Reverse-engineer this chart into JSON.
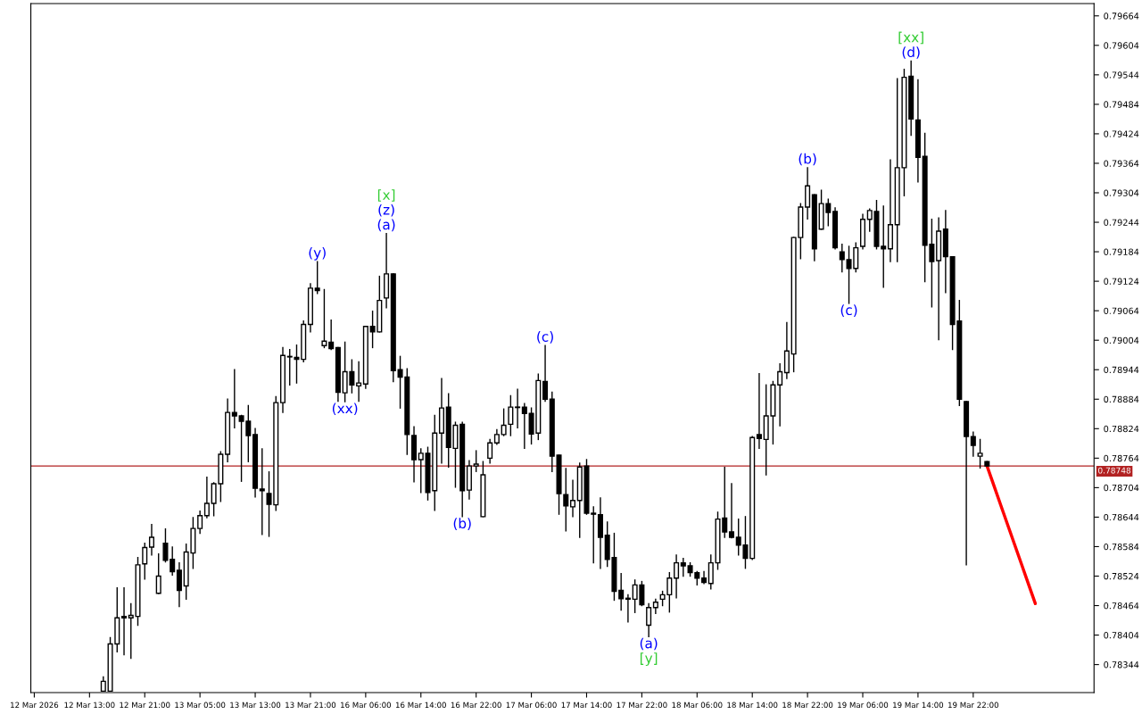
{
  "chart_data": {
    "type": "candlestick",
    "categories": [
      "12 Mar 2026",
      null,
      null,
      null,
      null,
      null,
      null,
      null,
      "12 Mar 13:00",
      null,
      null,
      null,
      null,
      null,
      null,
      null,
      "12 Mar 21:00",
      null,
      null,
      null,
      null,
      null,
      null,
      null,
      "13 Mar 05:00",
      null,
      null,
      null,
      null,
      null,
      null,
      null,
      "13 Mar 13:00",
      null,
      null,
      null,
      null,
      null,
      null,
      null,
      "13 Mar 21:00",
      null,
      null,
      null,
      null,
      null,
      null,
      null,
      "16 Mar 06:00",
      null,
      null,
      null,
      null,
      null,
      null,
      null,
      "16 Mar 14:00",
      null,
      null,
      null,
      null,
      null,
      null,
      null,
      "16 Mar 22:00",
      null,
      null,
      null,
      null,
      null,
      null,
      null,
      "17 Mar 06:00",
      null,
      null,
      null,
      null,
      null,
      null,
      null,
      "17 Mar 14:00",
      null,
      null,
      null,
      null,
      null,
      null,
      null,
      "17 Mar 22:00",
      null,
      null,
      null,
      null,
      null,
      null,
      null,
      "18 Mar 06:00",
      null,
      null,
      null,
      null,
      null,
      null,
      null,
      "18 Mar 14:00",
      null,
      null,
      null,
      null,
      null,
      null,
      null,
      "18 Mar 22:00",
      null,
      null,
      null,
      null,
      null,
      null,
      null,
      "19 Mar 06:00",
      null,
      null,
      null,
      null,
      null,
      null,
      null,
      "19 Mar 14:00",
      null,
      null,
      null,
      null,
      null,
      null,
      null,
      "19 Mar 22:00",
      null,
      null,
      null,
      null,
      null,
      null,
      null,
      null,
      null,
      null,
      null,
      null,
      null,
      null,
      null,
      null,
      null
    ],
    "ohlc": [
      null,
      null,
      null,
      null,
      null,
      null,
      null,
      null,
      null,
      null,
      [
        0.7829,
        0.78319,
        0.7829,
        0.7831
      ],
      [
        0.7829,
        0.78399,
        0.7829,
        0.78386
      ],
      [
        0.78386,
        0.785,
        0.7837,
        0.78439
      ],
      [
        0.78442,
        0.785,
        0.78364,
        0.78439
      ],
      [
        0.78439,
        0.78468,
        0.78357,
        0.78444
      ],
      [
        0.78442,
        0.78562,
        0.78424,
        0.78547
      ],
      [
        0.78549,
        0.78591,
        0.78518,
        0.78582
      ],
      [
        0.78583,
        0.78629,
        0.78567,
        0.78603
      ],
      [
        0.78489,
        0.78569,
        0.78489,
        0.78524
      ],
      [
        0.78591,
        0.7862,
        0.78553,
        0.78556
      ],
      [
        0.78558,
        0.78583,
        0.78526,
        0.78533
      ],
      [
        0.78536,
        0.78551,
        0.78462,
        0.78495
      ],
      [
        0.78504,
        0.78589,
        0.78477,
        0.78573
      ],
      [
        0.78571,
        0.78643,
        0.7854,
        0.78621
      ],
      [
        0.78621,
        0.78656,
        0.78611,
        0.78647
      ],
      [
        0.78647,
        0.78725,
        0.78643,
        0.78672
      ],
      [
        0.78672,
        0.78714,
        0.78647,
        0.78712
      ],
      [
        0.78712,
        0.78777,
        0.78676,
        0.78772
      ],
      [
        0.78772,
        0.78884,
        0.78757,
        0.78857
      ],
      [
        0.78857,
        0.78944,
        0.78826,
        0.7885
      ],
      [
        0.7885,
        0.78851,
        0.78717,
        0.78839
      ],
      [
        0.78839,
        0.78871,
        0.78757,
        0.7881
      ],
      [
        0.78812,
        0.78824,
        0.78685,
        0.78703
      ],
      [
        0.78701,
        0.78783,
        0.78609,
        0.78698
      ],
      [
        0.78692,
        0.78736,
        0.78605,
        0.7867
      ],
      [
        0.78669,
        0.78889,
        0.78658,
        0.78877
      ],
      [
        0.78877,
        0.78989,
        0.78857,
        0.78973
      ],
      [
        0.78971,
        0.78985,
        0.78913,
        0.7897
      ],
      [
        0.78969,
        0.78994,
        0.78917,
        0.78965
      ],
      [
        0.78965,
        0.79043,
        0.7896,
        0.79036
      ],
      [
        0.79036,
        0.79119,
        0.79021,
        0.7911
      ],
      [
        0.7911,
        0.79164,
        0.79099,
        0.79105
      ],
      [
        0.78993,
        0.79107,
        0.78989,
        0.79002
      ],
      [
        0.79,
        0.79045,
        0.78985,
        0.78987
      ],
      [
        0.78989,
        0.78989,
        0.7888,
        0.78898
      ],
      [
        0.78897,
        0.79,
        0.78879,
        0.7894
      ],
      [
        0.7894,
        0.78964,
        0.78897,
        0.78913
      ],
      [
        0.78911,
        0.7896,
        0.7888,
        0.78917
      ],
      [
        0.78915,
        0.79032,
        0.78906,
        0.79032
      ],
      [
        0.79032,
        0.79063,
        0.78989,
        0.79021
      ],
      [
        0.79021,
        0.79134,
        0.79021,
        0.79085
      ],
      [
        0.7909,
        0.79221,
        0.7907,
        0.79139
      ],
      [
        0.79139,
        0.79139,
        0.7892,
        0.78942
      ],
      [
        0.78944,
        0.78971,
        0.78866,
        0.78929
      ],
      [
        0.78929,
        0.78946,
        0.78772,
        0.78812
      ],
      [
        0.7881,
        0.78828,
        0.78716,
        0.78761
      ],
      [
        0.78761,
        0.78783,
        0.78694,
        0.78774
      ],
      [
        0.78774,
        0.78786,
        0.78679,
        0.78694
      ],
      [
        0.78698,
        0.78851,
        0.78658,
        0.78815
      ],
      [
        0.78815,
        0.78926,
        0.78754,
        0.78866
      ],
      [
        0.78868,
        0.78895,
        0.78746,
        0.78786
      ],
      [
        0.78784,
        0.78837,
        0.78705,
        0.78831
      ],
      [
        0.78833,
        0.78837,
        0.78645,
        0.78698
      ],
      [
        0.78699,
        0.78759,
        0.78681,
        0.78748
      ],
      [
        0.78748,
        0.78779,
        0.78737,
        0.78752
      ],
      [
        0.78645,
        0.78757,
        0.78645,
        0.7873
      ],
      [
        0.78764,
        0.78802,
        0.78754,
        0.78795
      ],
      [
        0.78795,
        0.78822,
        0.78792,
        0.78812
      ],
      [
        0.78812,
        0.78864,
        0.7881,
        0.78831
      ],
      [
        0.78833,
        0.78891,
        0.7881,
        0.78868
      ],
      [
        0.78868,
        0.78904,
        0.78826,
        0.78867
      ],
      [
        0.78868,
        0.78875,
        0.78784,
        0.78855
      ],
      [
        0.78855,
        0.78866,
        0.78793,
        0.78813
      ],
      [
        0.78815,
        0.78935,
        0.78802,
        0.78922
      ],
      [
        0.7892,
        0.78993,
        0.7888,
        0.78884
      ],
      [
        0.78884,
        0.78898,
        0.78737,
        0.78768
      ],
      [
        0.7877,
        0.7877,
        0.7865,
        0.78692
      ],
      [
        0.7869,
        0.78743,
        0.78616,
        0.78667
      ],
      [
        0.78665,
        0.78719,
        0.78645,
        0.78678
      ],
      [
        0.78678,
        0.78754,
        0.78603,
        0.78746
      ],
      [
        0.78748,
        0.78761,
        0.7865,
        0.78652
      ],
      [
        0.78652,
        0.78665,
        0.78551,
        0.7865
      ],
      [
        0.78649,
        0.78683,
        0.7854,
        0.78603
      ],
      [
        0.78607,
        0.78634,
        0.78544,
        0.78558
      ],
      [
        0.78562,
        0.78611,
        0.78475,
        0.78493
      ],
      [
        0.78495,
        0.78529,
        0.78455,
        0.78478
      ],
      [
        0.78479,
        0.78486,
        0.78431,
        0.78477
      ],
      [
        0.78477,
        0.78516,
        0.7845,
        0.78506
      ],
      [
        0.78506,
        0.78513,
        0.78464,
        0.78466
      ],
      [
        0.78424,
        0.78468,
        0.78401,
        0.7846
      ],
      [
        0.7846,
        0.78477,
        0.78448,
        0.78471
      ],
      [
        0.78477,
        0.78493,
        0.78464,
        0.78486
      ],
      [
        0.78486,
        0.78531,
        0.78451,
        0.7852
      ],
      [
        0.7852,
        0.78567,
        0.7848,
        0.78551
      ],
      [
        0.78551,
        0.7856,
        0.78524,
        0.78545
      ],
      [
        0.78545,
        0.78551,
        0.78524,
        0.78531
      ],
      [
        0.78531,
        0.78533,
        0.78506,
        0.7852
      ],
      [
        0.7852,
        0.78533,
        0.78509,
        0.78511
      ],
      [
        0.78509,
        0.78567,
        0.78498,
        0.78551
      ],
      [
        0.78551,
        0.78654,
        0.78538,
        0.7864
      ],
      [
        0.78642,
        0.78745,
        0.78603,
        0.78614
      ],
      [
        0.78614,
        0.78712,
        0.78602,
        0.78603
      ],
      [
        0.78603,
        0.7864,
        0.78567,
        0.78587
      ],
      [
        0.78587,
        0.78645,
        0.7854,
        0.7856
      ],
      [
        0.7856,
        0.78808,
        0.78558,
        0.78806
      ],
      [
        0.78812,
        0.78936,
        0.78784,
        0.78804
      ],
      [
        0.78802,
        0.78913,
        0.7873,
        0.7885
      ],
      [
        0.7885,
        0.7892,
        0.78793,
        0.78913
      ],
      [
        0.78913,
        0.78956,
        0.7883,
        0.7894
      ],
      [
        0.78938,
        0.7904,
        0.78926,
        0.78982
      ],
      [
        0.78976,
        0.79213,
        0.7894,
        0.79213
      ],
      [
        0.79213,
        0.79282,
        0.7917,
        0.79275
      ],
      [
        0.79275,
        0.79355,
        0.79251,
        0.79318
      ],
      [
        0.793,
        0.793,
        0.79166,
        0.7919
      ],
      [
        0.7923,
        0.79309,
        0.7923,
        0.79282
      ],
      [
        0.79282,
        0.79291,
        0.79237,
        0.79264
      ],
      [
        0.79266,
        0.79273,
        0.7919,
        0.79192
      ],
      [
        0.79184,
        0.79199,
        0.79143,
        0.79168
      ],
      [
        0.79168,
        0.79195,
        0.79079,
        0.7915
      ],
      [
        0.7915,
        0.79202,
        0.79143,
        0.79192
      ],
      [
        0.79195,
        0.7926,
        0.7919,
        0.7925
      ],
      [
        0.7925,
        0.79271,
        0.79226,
        0.79268
      ],
      [
        0.79266,
        0.79288,
        0.7919,
        0.79195
      ],
      [
        0.79195,
        0.79277,
        0.79112,
        0.7919
      ],
      [
        0.7919,
        0.79371,
        0.79164,
        0.79239
      ],
      [
        0.79239,
        0.79536,
        0.79164,
        0.79355
      ],
      [
        0.79355,
        0.79555,
        0.79298,
        0.79539
      ],
      [
        0.79541,
        0.79572,
        0.79421,
        0.79454
      ],
      [
        0.79452,
        0.79534,
        0.79326,
        0.79376
      ],
      [
        0.79378,
        0.79425,
        0.79123,
        0.79197
      ],
      [
        0.79199,
        0.7925,
        0.79072,
        0.79164
      ],
      [
        0.79166,
        0.79253,
        0.79005,
        0.79226
      ],
      [
        0.7923,
        0.79268,
        0.79101,
        0.79174
      ],
      [
        0.79174,
        0.79174,
        0.78985,
        0.79036
      ],
      [
        0.79043,
        0.79085,
        0.78871,
        0.78884
      ],
      [
        0.78879,
        0.78879,
        0.78547,
        0.78808
      ],
      [
        0.78808,
        0.78817,
        0.78768,
        0.7879
      ],
      [
        0.78768,
        0.78802,
        0.78744,
        0.78774
      ],
      [
        0.78757,
        0.78757,
        0.78748,
        0.78748
      ],
      null,
      null,
      null,
      null,
      null,
      null,
      null,
      null,
      null,
      null,
      null,
      null,
      null,
      null,
      null
    ],
    "series": [
      {
        "type": "line",
        "color": "#ff0000",
        "values": [
          null,
          null,
          null,
          null,
          null,
          null,
          null,
          null,
          null,
          null,
          null,
          null,
          null,
          null,
          null,
          null,
          null,
          null,
          null,
          null,
          null,
          null,
          null,
          null,
          null,
          null,
          null,
          null,
          null,
          null,
          null,
          null,
          null,
          null,
          null,
          null,
          null,
          null,
          null,
          null,
          null,
          null,
          null,
          null,
          null,
          null,
          null,
          null,
          null,
          null,
          null,
          null,
          null,
          null,
          null,
          null,
          null,
          null,
          null,
          null,
          null,
          null,
          null,
          null,
          null,
          null,
          null,
          null,
          null,
          null,
          null,
          null,
          null,
          null,
          null,
          null,
          null,
          null,
          null,
          null,
          null,
          null,
          null,
          null,
          null,
          null,
          null,
          null,
          null,
          null,
          null,
          null,
          null,
          null,
          null,
          null,
          null,
          null,
          null,
          null,
          null,
          null,
          null,
          null,
          null,
          null,
          null,
          null,
          null,
          null,
          null,
          null,
          null,
          null,
          null,
          null,
          null,
          null,
          null,
          null,
          null,
          null,
          null,
          null,
          null,
          null,
          null,
          null,
          null,
          null,
          null,
          null,
          null,
          null,
          null,
          null,
          null,
          null,
          0.78748,
          0.78708,
          0.78668,
          0.78628,
          0.78588,
          0.78548,
          0.78508,
          0.78468,
          null,
          null,
          null,
          null,
          null,
          null,
          null,
          null
        ]
      }
    ],
    "ylim": [
      0.78287,
      0.79689
    ],
    "yticks": [
      0.78344,
      0.78404,
      0.78464,
      0.78524,
      0.78584,
      0.78644,
      0.78704,
      0.78764,
      0.78824,
      0.78884,
      0.78944,
      0.79004,
      0.79064,
      0.79124,
      0.79184,
      0.79244,
      0.79304,
      0.79364,
      0.79424,
      0.79484,
      0.79544,
      0.79604,
      0.79664
    ],
    "ref_lines": [
      {
        "axis": "y",
        "value": 0.78748,
        "label": "0.78748",
        "color": "#b22222"
      }
    ],
    "annotations": [
      {
        "text": "(y)",
        "y": 0.79164
      },
      {
        "text": "(a)",
        "y": 0.79221
      },
      {
        "text": "(z)",
        "y": 0.79221
      },
      {
        "text": "[x]",
        "y": 0.79221
      },
      {
        "text": "(xx)",
        "y": 0.78879
      },
      {
        "text": "(b)",
        "y": 0.78645
      },
      {
        "text": "(c)",
        "y": 0.78993
      },
      {
        "text": "(a)",
        "y": 0.78401
      },
      {
        "text": "[y]",
        "y": 0.78401
      },
      {
        "text": "(b)",
        "y": 0.79355
      },
      {
        "text": "(c)",
        "y": 0.79079
      },
      {
        "text": "(d)",
        "y": 0.79572
      },
      {
        "text": "[xx]",
        "y": 0.79572
      }
    ],
    "grid": false
  }
}
